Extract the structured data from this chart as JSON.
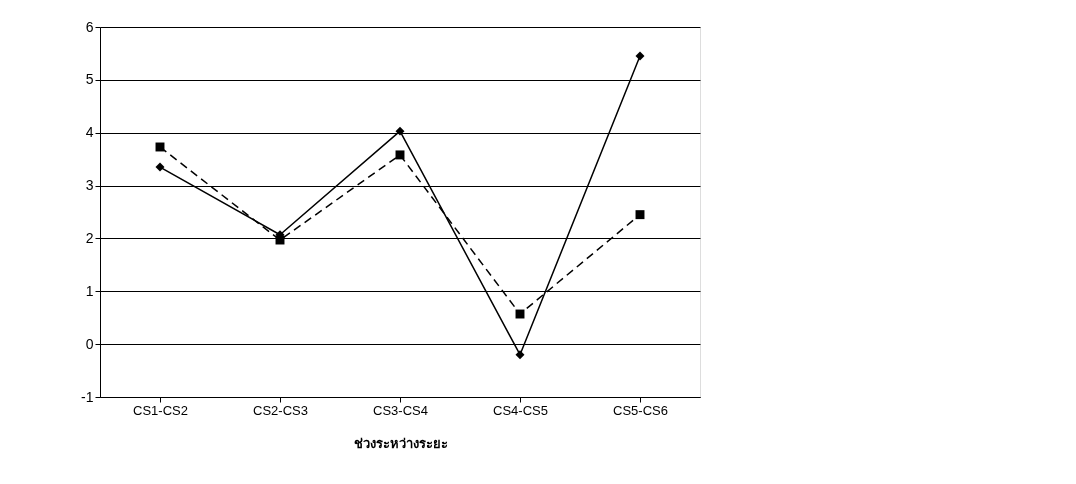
{
  "chart_data": {
    "type": "line",
    "xlabel": "ช่วงระหว่างระยะ",
    "categories": [
      "CS1-CS2",
      "CS2-CS3",
      "CS3-CS4",
      "CS4-CS5",
      "CS5-CS6"
    ],
    "series": [
      {
        "color": "#000000",
        "line_style": "solid",
        "marker": "diamond",
        "values": [
          3.35,
          2.07,
          4.03,
          -0.2,
          5.45
        ]
      },
      {
        "color": "#000000",
        "line_style": "dashed",
        "marker": "square",
        "values": [
          3.73,
          1.97,
          3.58,
          0.57,
          2.45
        ]
      }
    ],
    "ylim": [
      -1,
      6
    ],
    "yticks": [
      -1,
      0,
      1,
      2,
      3,
      4,
      5,
      6
    ],
    "grid": "y"
  }
}
